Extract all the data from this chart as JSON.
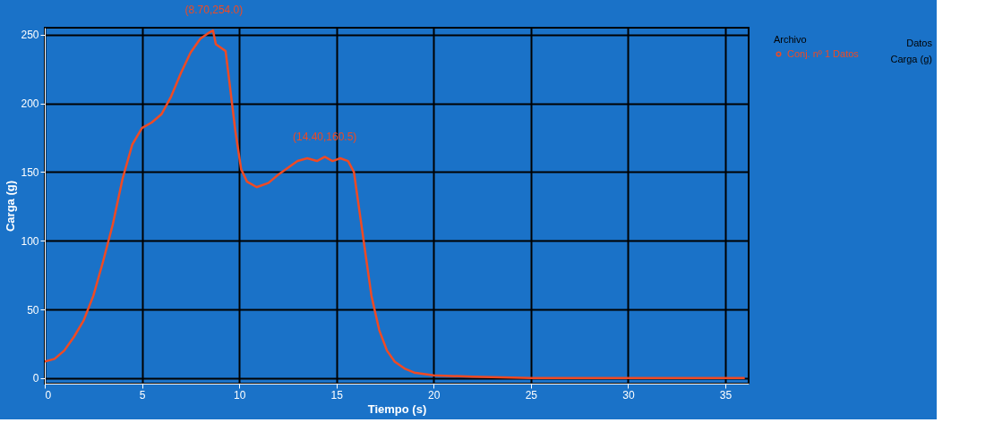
{
  "chart_data": {
    "type": "line",
    "xlabel": "Tiempo (s)",
    "ylabel": "Carga (g)",
    "legend_title": "Archivo",
    "annotations": [
      {
        "text": "(8.70,254.0)",
        "x": 8.7,
        "y": 253
      },
      {
        "text": "(14.40,160.5)",
        "x": 14.4,
        "y": 160.5
      },
      "Datos",
      "Carga (g)"
    ],
    "xlim": [
      0,
      36.2
    ],
    "ylim": [
      -4,
      255
    ],
    "xticks": [
      0,
      5,
      10,
      15,
      20,
      25,
      30,
      35
    ],
    "yticks": [
      0,
      50,
      100,
      150,
      200,
      250
    ],
    "grid": true,
    "legend": "right",
    "marker": "none",
    "line_style": "solid",
    "series": [
      {
        "name": "Conj. nº 1 Datos",
        "color": "#f04a23",
        "x": [
          0,
          0.5,
          1,
          1.5,
          2,
          2.5,
          3,
          3.5,
          4,
          4.5,
          5,
          5.5,
          6,
          6.5,
          7,
          7.5,
          8,
          8.4,
          8.65,
          8.8,
          9.0,
          9.3,
          9.5,
          9.8,
          10.1,
          10.4,
          10.9,
          11.5,
          12,
          12.5,
          13,
          13.5,
          14,
          14.4,
          14.8,
          15.2,
          15.6,
          15.9,
          16.2,
          16.5,
          16.8,
          17.2,
          17.6,
          18,
          18.5,
          19,
          20,
          22,
          25,
          30,
          36
        ],
        "values": [
          12,
          14,
          20,
          30,
          42,
          60,
          85,
          112,
          145,
          170,
          182,
          186,
          192,
          205,
          222,
          237,
          247,
          251,
          253,
          243,
          241,
          238,
          215,
          180,
          152,
          143,
          139,
          142,
          148,
          153,
          158,
          160,
          158,
          161,
          158,
          160,
          158,
          150,
          120,
          90,
          60,
          35,
          20,
          12,
          7,
          4,
          2,
          1,
          0,
          0,
          0
        ]
      }
    ]
  }
}
